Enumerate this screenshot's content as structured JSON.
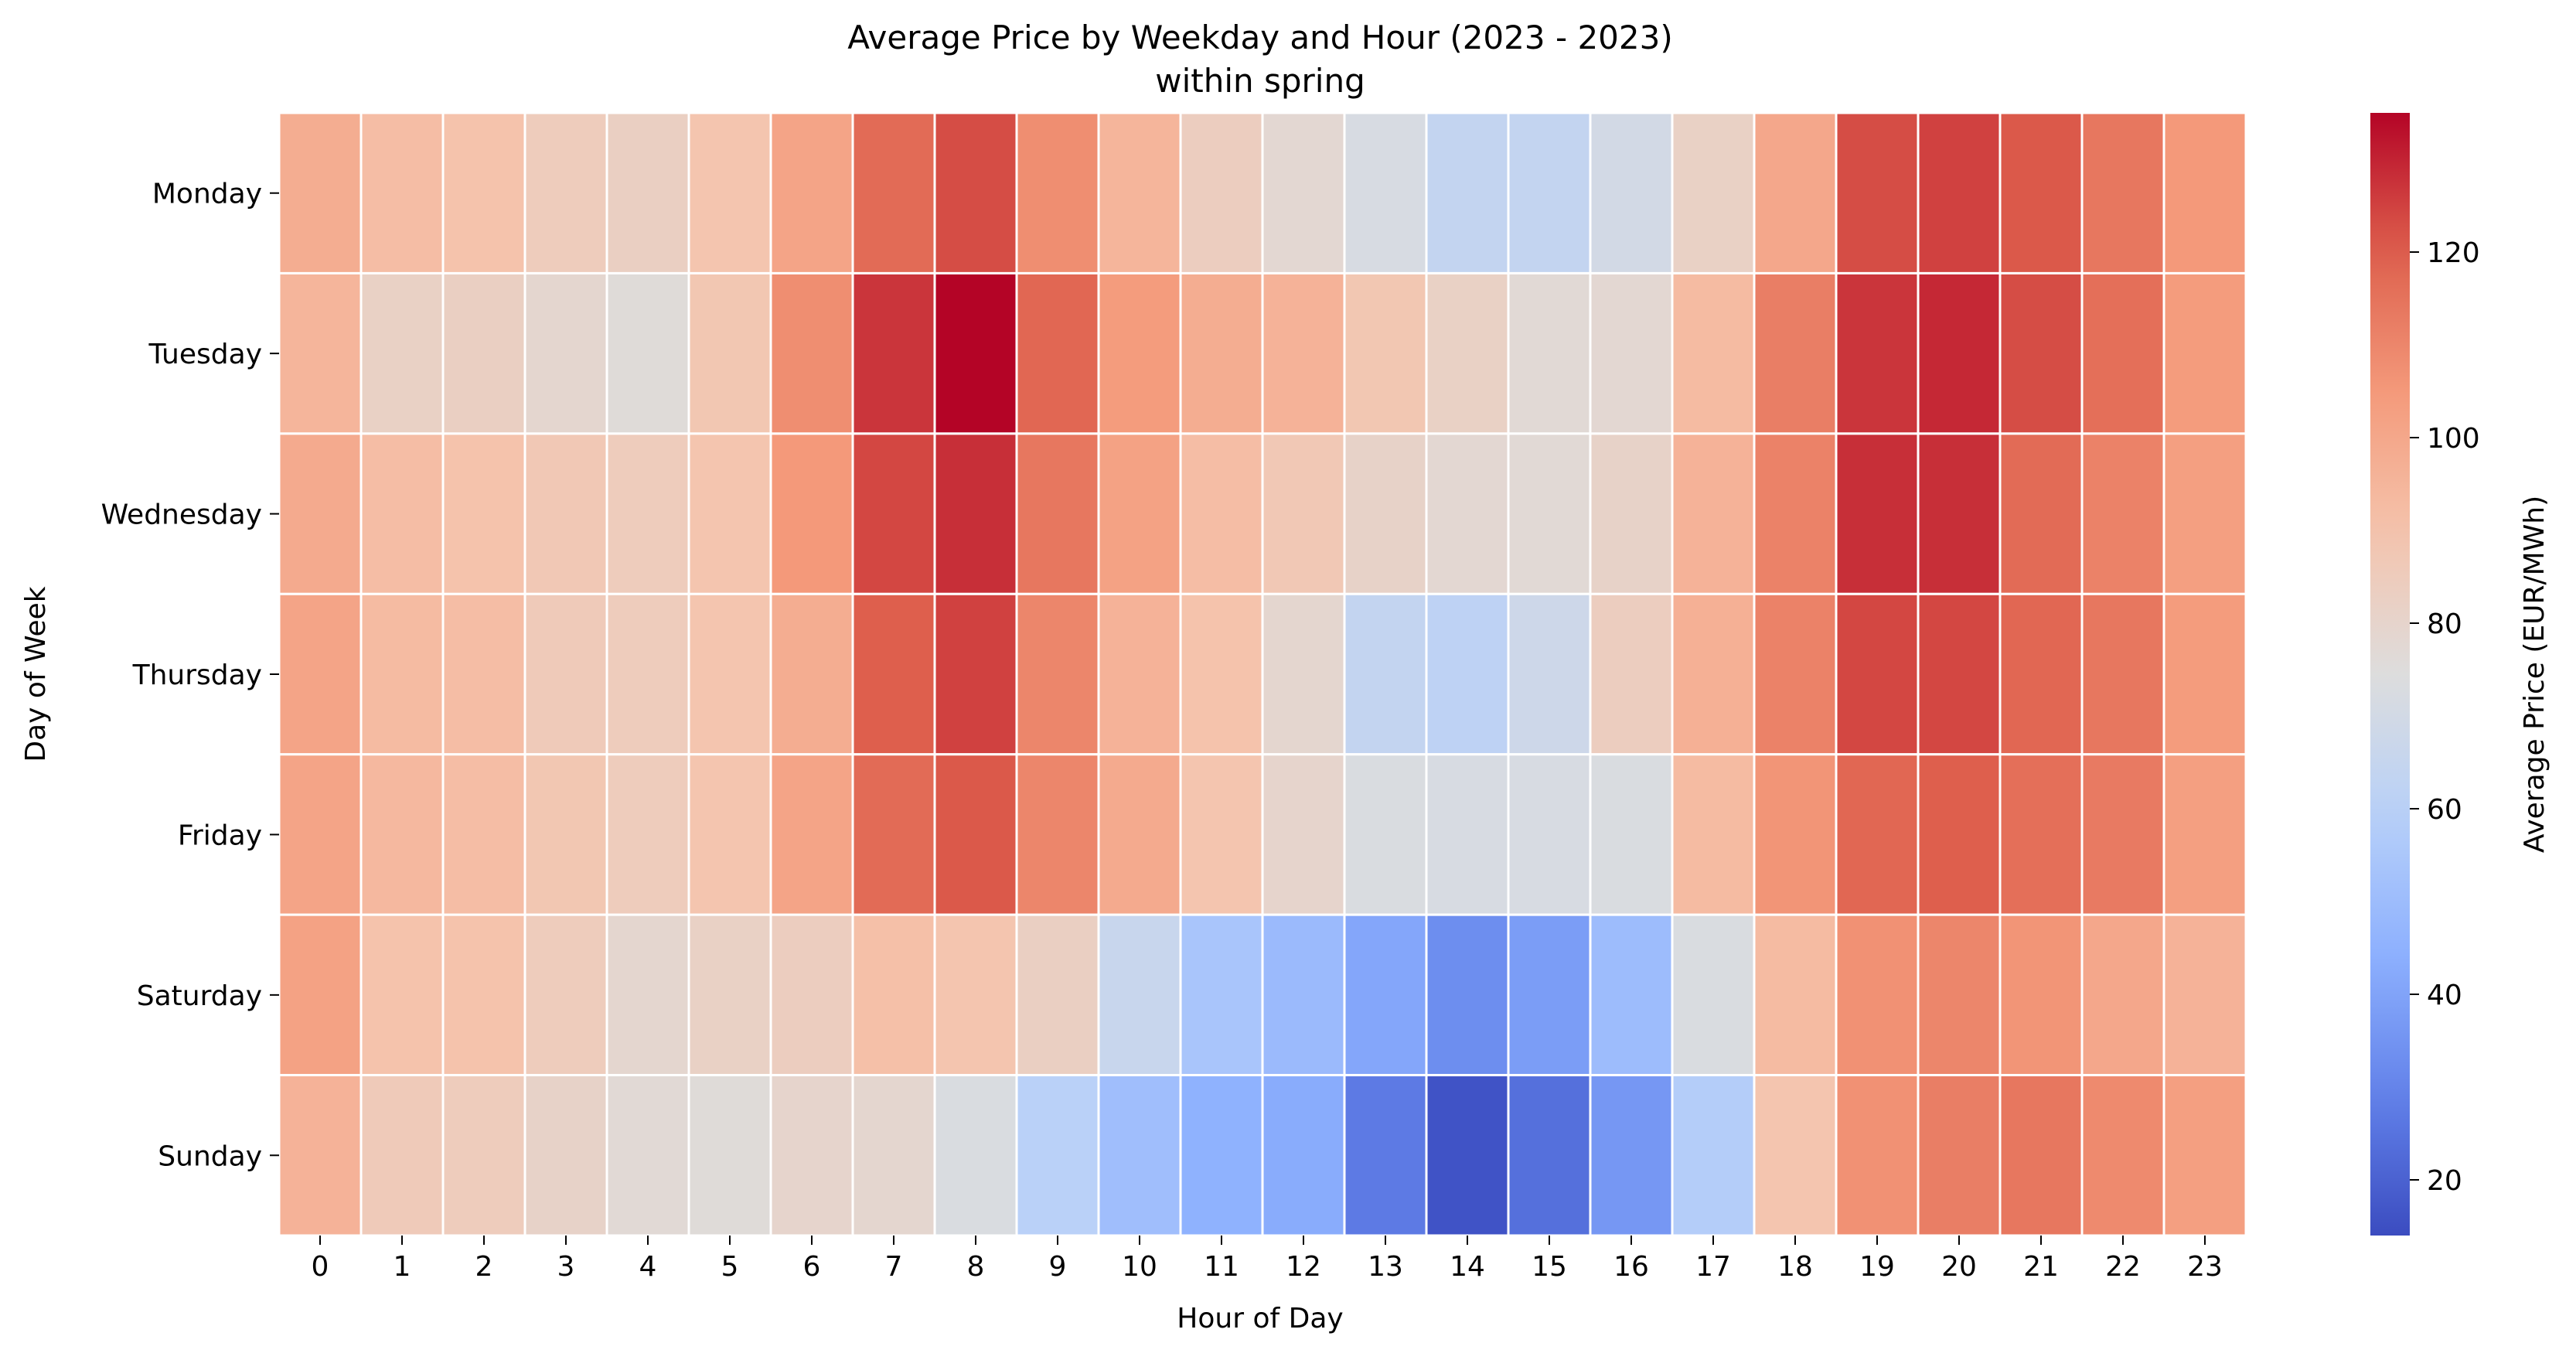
{
  "chart_data": {
    "type": "heatmap",
    "title": "Average Price by Weekday and Hour (2023 - 2023)",
    "subtitle": "within spring",
    "xlabel": "Hour of Day",
    "ylabel": "Day of Week",
    "colorbar_label": "Average Price (EUR/MWh)",
    "colormap": "coolwarm",
    "colorbar_range": [
      14,
      135
    ],
    "colorbar_ticks": [
      20,
      40,
      60,
      80,
      100,
      120
    ],
    "x": [
      "0",
      "1",
      "2",
      "3",
      "4",
      "5",
      "6",
      "7",
      "8",
      "9",
      "10",
      "11",
      "12",
      "13",
      "14",
      "15",
      "16",
      "17",
      "18",
      "19",
      "20",
      "21",
      "22",
      "23"
    ],
    "y": [
      "Monday",
      "Tuesday",
      "Wednesday",
      "Thursday",
      "Friday",
      "Saturday",
      "Sunday"
    ],
    "values": [
      [
        98,
        92,
        90,
        85,
        83,
        89,
        101,
        117,
        123,
        108,
        95,
        84,
        78,
        72,
        64,
        64,
        70,
        82,
        100,
        123,
        125,
        121,
        114,
        105
      ],
      [
        95,
        82,
        83,
        79,
        76,
        88,
        108,
        127,
        135,
        118,
        104,
        98,
        96,
        88,
        82,
        77,
        78,
        93,
        112,
        127,
        129,
        123,
        116,
        104
      ],
      [
        99,
        92,
        90,
        87,
        85,
        89,
        105,
        124,
        128,
        114,
        102,
        92,
        87,
        81,
        78,
        77,
        81,
        96,
        111,
        128,
        128,
        117,
        111,
        103
      ],
      [
        101,
        93,
        92,
        86,
        85,
        89,
        98,
        120,
        125,
        110,
        96,
        90,
        79,
        64,
        62,
        68,
        84,
        97,
        111,
        124,
        124,
        118,
        114,
        104
      ],
      [
        101,
        94,
        92,
        88,
        85,
        89,
        101,
        117,
        121,
        110,
        99,
        89,
        80,
        73,
        72,
        72,
        73,
        93,
        106,
        118,
        120,
        116,
        113,
        103
      ],
      [
        102,
        90,
        90,
        85,
        79,
        82,
        84,
        91,
        89,
        83,
        66,
        54,
        49,
        41,
        33,
        38,
        50,
        73,
        93,
        107,
        110,
        106,
        100,
        96
      ],
      [
        96,
        86,
        85,
        81,
        77,
        76,
        80,
        79,
        73,
        60,
        51,
        45,
        43,
        27,
        16,
        24,
        36,
        58,
        89,
        107,
        112,
        114,
        109,
        103
      ]
    ]
  }
}
